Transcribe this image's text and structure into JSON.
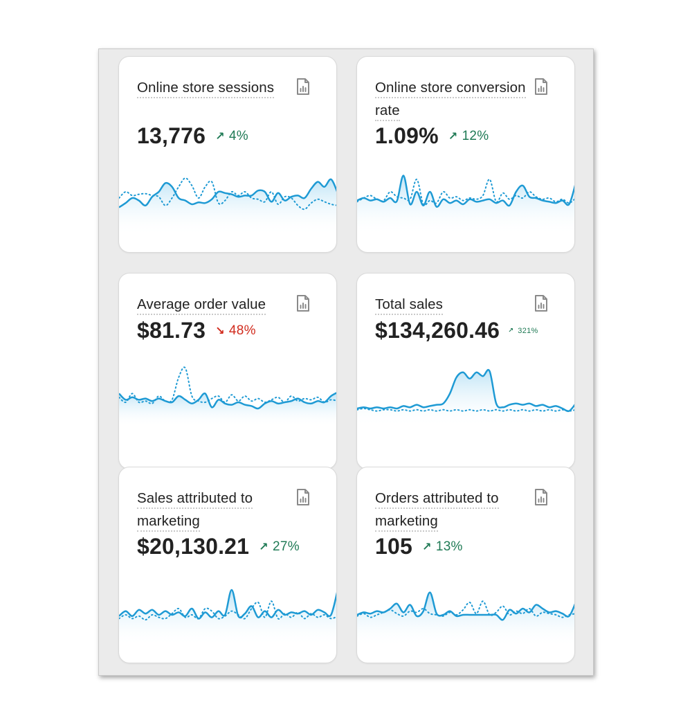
{
  "colors": {
    "line": "#1e9ad4",
    "fill_top": "#bfe4f6",
    "fill_bottom": "#ffffff",
    "positive": "#1f7a55",
    "negative": "#d12b1d"
  },
  "cards": [
    {
      "title": "Online store sessions",
      "value": "13,776",
      "delta": "4%",
      "direction": "up",
      "icon": "report-icon",
      "spark_current": [
        0.55,
        0.48,
        0.4,
        0.44,
        0.52,
        0.38,
        0.3,
        0.16,
        0.22,
        0.4,
        0.44,
        0.5,
        0.47,
        0.48,
        0.42,
        0.3,
        0.32,
        0.34,
        0.38,
        0.36,
        0.36,
        0.28,
        0.3,
        0.46,
        0.32,
        0.44,
        0.38,
        0.36,
        0.4,
        0.25,
        0.14,
        0.22,
        0.1,
        0.32
      ],
      "spark_previous": [
        0.4,
        0.3,
        0.36,
        0.34,
        0.33,
        0.36,
        0.38,
        0.52,
        0.4,
        0.22,
        0.08,
        0.2,
        0.4,
        0.22,
        0.14,
        0.48,
        0.44,
        0.3,
        0.36,
        0.3,
        0.4,
        0.42,
        0.46,
        0.3,
        0.5,
        0.38,
        0.4,
        0.52,
        0.58,
        0.48,
        0.42,
        0.46,
        0.5,
        0.52
      ]
    },
    {
      "title": "Online store conversion rate",
      "value": "1.09%",
      "delta": "12%",
      "direction": "up",
      "icon": "report-icon",
      "spark_current": [
        0.44,
        0.4,
        0.44,
        0.42,
        0.46,
        0.4,
        0.45,
        0.04,
        0.5,
        0.3,
        0.52,
        0.3,
        0.54,
        0.42,
        0.48,
        0.44,
        0.5,
        0.42,
        0.46,
        0.44,
        0.42,
        0.48,
        0.44,
        0.52,
        0.3,
        0.2,
        0.38,
        0.4,
        0.44,
        0.46,
        0.48,
        0.44,
        0.5,
        0.16
      ],
      "spark_previous": [
        0.46,
        0.4,
        0.36,
        0.42,
        0.44,
        0.3,
        0.38,
        0.4,
        0.42,
        0.1,
        0.5,
        0.44,
        0.48,
        0.3,
        0.4,
        0.38,
        0.44,
        0.4,
        0.42,
        0.36,
        0.1,
        0.46,
        0.32,
        0.42,
        0.36,
        0.4,
        0.3,
        0.38,
        0.42,
        0.4,
        0.46,
        0.42,
        0.48,
        0.4
      ]
    },
    {
      "title": "Average order value",
      "value": "$81.73",
      "delta": "48%",
      "direction": "down",
      "icon": "report-icon",
      "spark_current": [
        0.46,
        0.56,
        0.52,
        0.56,
        0.54,
        0.58,
        0.54,
        0.58,
        0.6,
        0.5,
        0.56,
        0.62,
        0.56,
        0.46,
        0.68,
        0.56,
        0.62,
        0.64,
        0.6,
        0.64,
        0.66,
        0.7,
        0.62,
        0.58,
        0.62,
        0.6,
        0.58,
        0.54,
        0.6,
        0.62,
        0.58,
        0.6,
        0.5,
        0.44
      ],
      "spark_previous": [
        0.52,
        0.6,
        0.46,
        0.6,
        0.58,
        0.62,
        0.5,
        0.58,
        0.56,
        0.2,
        0.05,
        0.5,
        0.58,
        0.6,
        0.54,
        0.5,
        0.6,
        0.48,
        0.58,
        0.5,
        0.58,
        0.54,
        0.6,
        0.56,
        0.52,
        0.6,
        0.5,
        0.58,
        0.54,
        0.56,
        0.52,
        0.6,
        0.56,
        0.58
      ]
    },
    {
      "title": "Total sales",
      "value": "$134,260.46",
      "delta": "321%",
      "direction": "up",
      "icon": "report-icon",
      "spark_current": [
        0.7,
        0.68,
        0.7,
        0.68,
        0.7,
        0.68,
        0.7,
        0.66,
        0.68,
        0.64,
        0.68,
        0.66,
        0.64,
        0.62,
        0.46,
        0.2,
        0.12,
        0.22,
        0.12,
        0.18,
        0.1,
        0.62,
        0.68,
        0.64,
        0.62,
        0.64,
        0.62,
        0.66,
        0.64,
        0.68,
        0.66,
        0.7,
        0.74,
        0.62
      ],
      "spark_previous": [
        0.72,
        0.7,
        0.72,
        0.74,
        0.72,
        0.72,
        0.74,
        0.72,
        0.74,
        0.72,
        0.74,
        0.72,
        0.74,
        0.72,
        0.74,
        0.72,
        0.74,
        0.72,
        0.74,
        0.72,
        0.74,
        0.72,
        0.74,
        0.72,
        0.74,
        0.72,
        0.74,
        0.72,
        0.74,
        0.72,
        0.74,
        0.72,
        0.74,
        0.72
      ]
    },
    {
      "title": "Sales attributed to marketing",
      "value": "$20,130.21",
      "delta": "27%",
      "direction": "up",
      "icon": "report-icon",
      "spark_current": [
        0.52,
        0.44,
        0.52,
        0.42,
        0.48,
        0.42,
        0.5,
        0.44,
        0.5,
        0.46,
        0.52,
        0.4,
        0.56,
        0.46,
        0.54,
        0.44,
        0.5,
        0.1,
        0.52,
        0.48,
        0.36,
        0.54,
        0.44,
        0.54,
        0.42,
        0.5,
        0.46,
        0.48,
        0.44,
        0.5,
        0.42,
        0.46,
        0.5,
        0.1
      ],
      "spark_previous": [
        0.56,
        0.5,
        0.56,
        0.52,
        0.58,
        0.5,
        0.54,
        0.56,
        0.48,
        0.4,
        0.54,
        0.5,
        0.56,
        0.4,
        0.44,
        0.56,
        0.52,
        0.44,
        0.5,
        0.56,
        0.4,
        0.3,
        0.54,
        0.28,
        0.56,
        0.48,
        0.54,
        0.46,
        0.56,
        0.48,
        0.54,
        0.5,
        0.56,
        0.52
      ]
    },
    {
      "title": "Orders attributed to marketing",
      "value": "105",
      "delta": "13%",
      "direction": "up",
      "icon": "report-icon",
      "spark_current": [
        0.5,
        0.46,
        0.48,
        0.44,
        0.46,
        0.4,
        0.32,
        0.46,
        0.34,
        0.52,
        0.44,
        0.14,
        0.48,
        0.5,
        0.44,
        0.52,
        0.5,
        0.5,
        0.5,
        0.5,
        0.5,
        0.5,
        0.58,
        0.42,
        0.48,
        0.4,
        0.46,
        0.34,
        0.4,
        0.46,
        0.44,
        0.48,
        0.52,
        0.3
      ],
      "spark_previous": [
        0.52,
        0.48,
        0.54,
        0.5,
        0.46,
        0.42,
        0.48,
        0.52,
        0.44,
        0.46,
        0.4,
        0.48,
        0.5,
        0.52,
        0.46,
        0.5,
        0.42,
        0.3,
        0.48,
        0.28,
        0.5,
        0.46,
        0.36,
        0.5,
        0.44,
        0.48,
        0.4,
        0.52,
        0.46,
        0.48,
        0.5,
        0.54,
        0.5,
        0.48
      ]
    }
  ]
}
